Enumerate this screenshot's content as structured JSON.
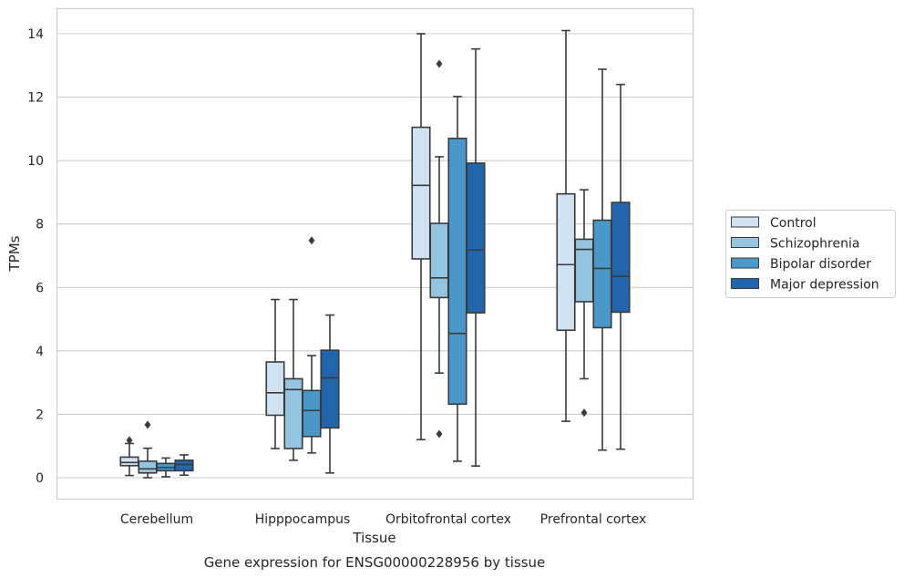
{
  "chart_data": {
    "type": "box",
    "xlabel": "Tissue",
    "ylabel": "TPMs",
    "caption": "Gene expression for ENSG00000228956 by tissue",
    "ylim": [
      -0.7,
      14.8
    ],
    "yticks": [
      0,
      2,
      4,
      6,
      8,
      10,
      12,
      14
    ],
    "grid": "horizontal",
    "legend_position": "right",
    "categories": [
      "Cerebellum",
      "Hipppocampus",
      "Orbitofrontal cortex",
      "Prefrontal cortex"
    ],
    "series": [
      {
        "name": "Control",
        "color": "#d0e1f2",
        "boxes": [
          {
            "whislo": 0.07,
            "q1": 0.38,
            "med": 0.48,
            "q3": 0.65,
            "whishi": 1.08,
            "fliers": [
              1.18
            ]
          },
          {
            "whislo": 0.92,
            "q1": 1.97,
            "med": 2.68,
            "q3": 3.65,
            "whishi": 5.62,
            "fliers": []
          },
          {
            "whislo": 1.2,
            "q1": 6.9,
            "med": 9.22,
            "q3": 11.05,
            "whishi": 14.0,
            "fliers": []
          },
          {
            "whislo": 1.78,
            "q1": 4.65,
            "med": 6.72,
            "q3": 8.95,
            "whishi": 14.1,
            "fliers": []
          }
        ]
      },
      {
        "name": "Schizophrenia",
        "color": "#94c4df",
        "boxes": [
          {
            "whislo": 0.0,
            "q1": 0.15,
            "med": 0.28,
            "q3": 0.52,
            "whishi": 0.93,
            "fliers": [
              1.67
            ]
          },
          {
            "whislo": 0.55,
            "q1": 0.92,
            "med": 2.78,
            "q3": 3.12,
            "whishi": 5.62,
            "fliers": []
          },
          {
            "whislo": 3.3,
            "q1": 5.68,
            "med": 6.3,
            "q3": 8.02,
            "whishi": 10.12,
            "fliers": [
              13.05,
              1.38
            ]
          },
          {
            "whislo": 3.12,
            "q1": 5.55,
            "med": 7.2,
            "q3": 7.52,
            "whishi": 9.08,
            "fliers": [
              2.05
            ]
          }
        ]
      },
      {
        "name": "Bipolar disorder",
        "color": "#4a98c9",
        "boxes": [
          {
            "whislo": 0.03,
            "q1": 0.22,
            "med": 0.32,
            "q3": 0.45,
            "whishi": 0.62,
            "fliers": []
          },
          {
            "whislo": 0.78,
            "q1": 1.3,
            "med": 2.12,
            "q3": 2.75,
            "whishi": 3.85,
            "fliers": [
              7.48
            ]
          },
          {
            "whislo": 0.52,
            "q1": 2.32,
            "med": 4.55,
            "q3": 10.7,
            "whishi": 12.02,
            "fliers": []
          },
          {
            "whislo": 0.87,
            "q1": 4.73,
            "med": 6.6,
            "q3": 8.12,
            "whishi": 12.88,
            "fliers": []
          }
        ]
      },
      {
        "name": "Major depression",
        "color": "#2166ac",
        "boxes": [
          {
            "whislo": 0.08,
            "q1": 0.22,
            "med": 0.42,
            "q3": 0.55,
            "whishi": 0.72,
            "fliers": []
          },
          {
            "whislo": 0.15,
            "q1": 1.57,
            "med": 3.15,
            "q3": 4.02,
            "whishi": 5.13,
            "fliers": []
          },
          {
            "whislo": 0.37,
            "q1": 5.2,
            "med": 7.18,
            "q3": 9.92,
            "whishi": 13.52,
            "fliers": []
          },
          {
            "whislo": 0.9,
            "q1": 5.22,
            "med": 6.35,
            "q3": 8.68,
            "whishi": 12.4,
            "fliers": []
          }
        ]
      }
    ]
  }
}
